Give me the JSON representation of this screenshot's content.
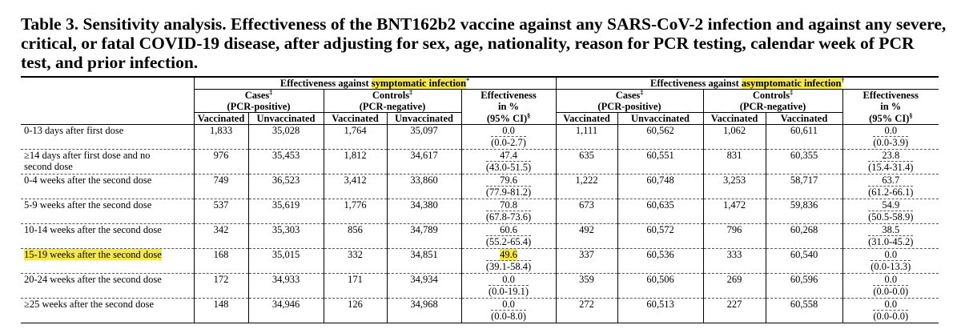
{
  "title": {
    "line1": "Table 3. Sensitivity analysis. Effectiveness of the BNT162b2 vaccine against any SARS-CoV-2 infection and against any severe,",
    "line2": "critical, or fatal COVID-19 disease, after adjusting for sex, age, nationality, reason for PCR testing, calendar week of PCR",
    "line3": "test, and prior infection."
  },
  "header": {
    "group1_prefix": "Effectiveness against ",
    "group1_highlight": "symptomatic infection",
    "group1_mark": "*",
    "group2_prefix": "Effectiveness against ",
    "group2_highlight": "asymptomatic infection",
    "group2_mark": "†",
    "cases": "Cases",
    "cases_mark": "‡",
    "controls": "Controls",
    "controls_mark": "‡",
    "cases_sub": "(PCR-positive)",
    "controls_sub": "(PCR-negative)",
    "eff_line1": "Effectiveness",
    "eff_line2": "in %",
    "eff_line3": "(95% CI)",
    "eff_mark": "§",
    "vaccinated": "Vaccinated",
    "unvaccinated": "Unvaccinated"
  },
  "rows": [
    {
      "label": "0-13 days after first dose",
      "label2": "",
      "s_cv": "1,833",
      "s_cu": "35,028",
      "s_kv": "1,764",
      "s_ku": "35,097",
      "s_eff": "0.0",
      "s_ci": "(0.0-2.7)",
      "a_cv": "1,111",
      "a_cu": "60,562",
      "a_kv": "1,062",
      "a_ku": "60,611",
      "a_eff": "0.0",
      "a_ci": "(0.0-3.9)"
    },
    {
      "label": "≥14 days after first dose and no",
      "label2": "second dose",
      "s_cv": "976",
      "s_cu": "35,453",
      "s_kv": "1,812",
      "s_ku": "34,617",
      "s_eff": "47.4",
      "s_ci": "(43.0-51.5)",
      "a_cv": "635",
      "a_cu": "60,551",
      "a_kv": "831",
      "a_ku": "60,355",
      "a_eff": "23.8",
      "a_ci": "(15.4-31.4)"
    },
    {
      "label": "0-4 weeks after the second dose",
      "label2": "",
      "s_cv": "749",
      "s_cu": "36,523",
      "s_kv": "3,412",
      "s_ku": "33,860",
      "s_eff": "79.6",
      "s_ci": "(77.9-81.2)",
      "a_cv": "1,222",
      "a_cu": "60,748",
      "a_kv": "3,253",
      "a_ku": "58,717",
      "a_eff": "63.7",
      "a_ci": "(61.2-66.1)"
    },
    {
      "label": "5-9 weeks after the second dose",
      "label2": "",
      "s_cv": "537",
      "s_cu": "35,619",
      "s_kv": "1,776",
      "s_ku": "34,380",
      "s_eff": "70.8",
      "s_ci": "(67.8-73.6)",
      "a_cv": "673",
      "a_cu": "60,635",
      "a_kv": "1,472",
      "a_ku": "59,836",
      "a_eff": "54.9",
      "a_ci": "(50.5-58.9)"
    },
    {
      "label": "10-14 weeks after the second dose",
      "label2": "",
      "s_cv": "342",
      "s_cu": "35,303",
      "s_kv": "856",
      "s_ku": "34,789",
      "s_eff": "60.6",
      "s_ci": "(55.2-65.4)",
      "a_cv": "492",
      "a_cu": "60,572",
      "a_kv": "796",
      "a_ku": "60,268",
      "a_eff": "38.5",
      "a_ci": "(31.0-45.2)"
    },
    {
      "label": "15-19 weeks after the second dose",
      "label2": "",
      "s_cv": "168",
      "s_cu": "35,015",
      "s_kv": "332",
      "s_ku": "34,851",
      "s_eff": "49.6",
      "s_ci": "(39.1-58.4)",
      "a_cv": "337",
      "a_cu": "60,536",
      "a_kv": "333",
      "a_ku": "60,540",
      "a_eff": "0.0",
      "a_ci": "(0.0-13.3)"
    },
    {
      "label": "20-24 weeks after the second dose",
      "label2": "",
      "s_cv": "172",
      "s_cu": "34,933",
      "s_kv": "171",
      "s_ku": "34,934",
      "s_eff": "0.0",
      "s_ci": "(0.0-19.1)",
      "a_cv": "359",
      "a_cu": "60,506",
      "a_kv": "269",
      "a_ku": "60,596",
      "a_eff": "0.0",
      "a_ci": "(0.0-0.0)"
    },
    {
      "label": "≥25 weeks after the second dose",
      "label2": "",
      "s_cv": "148",
      "s_cu": "34,946",
      "s_kv": "126",
      "s_ku": "34,968",
      "s_eff": "0.0",
      "s_ci": "(0.0-8.0)",
      "a_cv": "272",
      "a_cu": "60,513",
      "a_kv": "227",
      "a_ku": "60,558",
      "a_eff": "0.0",
      "a_ci": "(0.0-0.0)"
    }
  ],
  "highlight_color": "#f7e84a"
}
